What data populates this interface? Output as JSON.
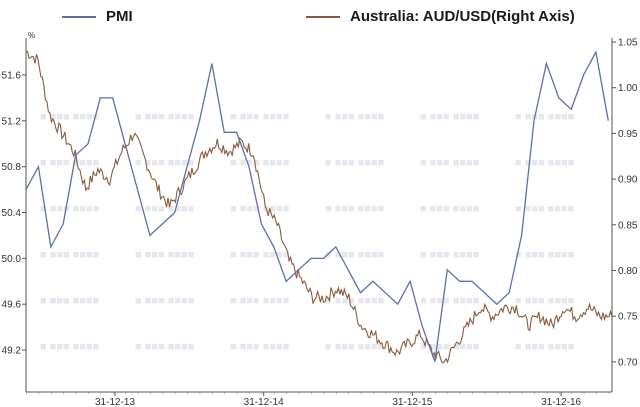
{
  "chart_data": {
    "type": "line",
    "title": "",
    "legend": [
      {
        "name": "PMI",
        "color": "#5b6fae",
        "axis": "left"
      },
      {
        "name": "Australia: AUD/USD(Right Axis)",
        "color": "#8b5a3c",
        "axis": "right"
      }
    ],
    "legend_position": "top",
    "left_axis": {
      "unit": "%",
      "ticks": [
        "51.6",
        "51.2",
        "50.8",
        "50.4",
        "50.0",
        "49.6",
        "49.2"
      ],
      "ylim": [
        48.9,
        51.95
      ]
    },
    "right_axis": {
      "ticks": [
        "1.05",
        "1.00",
        "0.95",
        "0.90",
        "0.85",
        "0.80",
        "0.75",
        "0.70"
      ],
      "ylim": [
        0.68,
        1.05
      ]
    },
    "x_axis": {
      "tick_labels": [
        "31-12-13",
        "31-12-14",
        "31-12-15",
        "31-12-16"
      ]
    },
    "grid": false,
    "series": [
      {
        "name": "PMI",
        "frequency": "monthly",
        "start": "2013-01",
        "values": [
          50.6,
          50.8,
          50.1,
          50.3,
          50.9,
          51.0,
          51.4,
          51.4,
          51.0,
          50.6,
          50.2,
          50.3,
          50.4,
          50.8,
          51.2,
          51.7,
          51.1,
          51.1,
          50.8,
          50.3,
          50.1,
          49.8,
          49.9,
          50.0,
          50.0,
          50.1,
          49.9,
          49.7,
          49.8,
          49.7,
          49.6,
          49.8,
          49.4,
          49.1,
          49.9,
          49.8,
          49.8,
          49.7,
          49.6,
          49.7,
          50.2,
          51.2,
          51.7,
          51.4,
          51.3,
          51.6,
          51.8,
          51.2
        ]
      },
      {
        "name": "Australia: AUD/USD",
        "frequency": "daily (sampled)",
        "start": "2013-01",
        "values": [
          1.04,
          1.03,
          0.97,
          0.95,
          0.93,
          0.89,
          0.91,
          0.9,
          0.93,
          0.95,
          0.92,
          0.89,
          0.87,
          0.89,
          0.91,
          0.93,
          0.94,
          0.93,
          0.94,
          0.93,
          0.87,
          0.85,
          0.81,
          0.79,
          0.77,
          0.77,
          0.78,
          0.77,
          0.74,
          0.73,
          0.72,
          0.71,
          0.72,
          0.73,
          0.71,
          0.7,
          0.72,
          0.74,
          0.76,
          0.75,
          0.76,
          0.76,
          0.74,
          0.75,
          0.74,
          0.76,
          0.75,
          0.76,
          0.75,
          0.75
        ]
      }
    ]
  },
  "watermark": {
    "rows": 6
  }
}
